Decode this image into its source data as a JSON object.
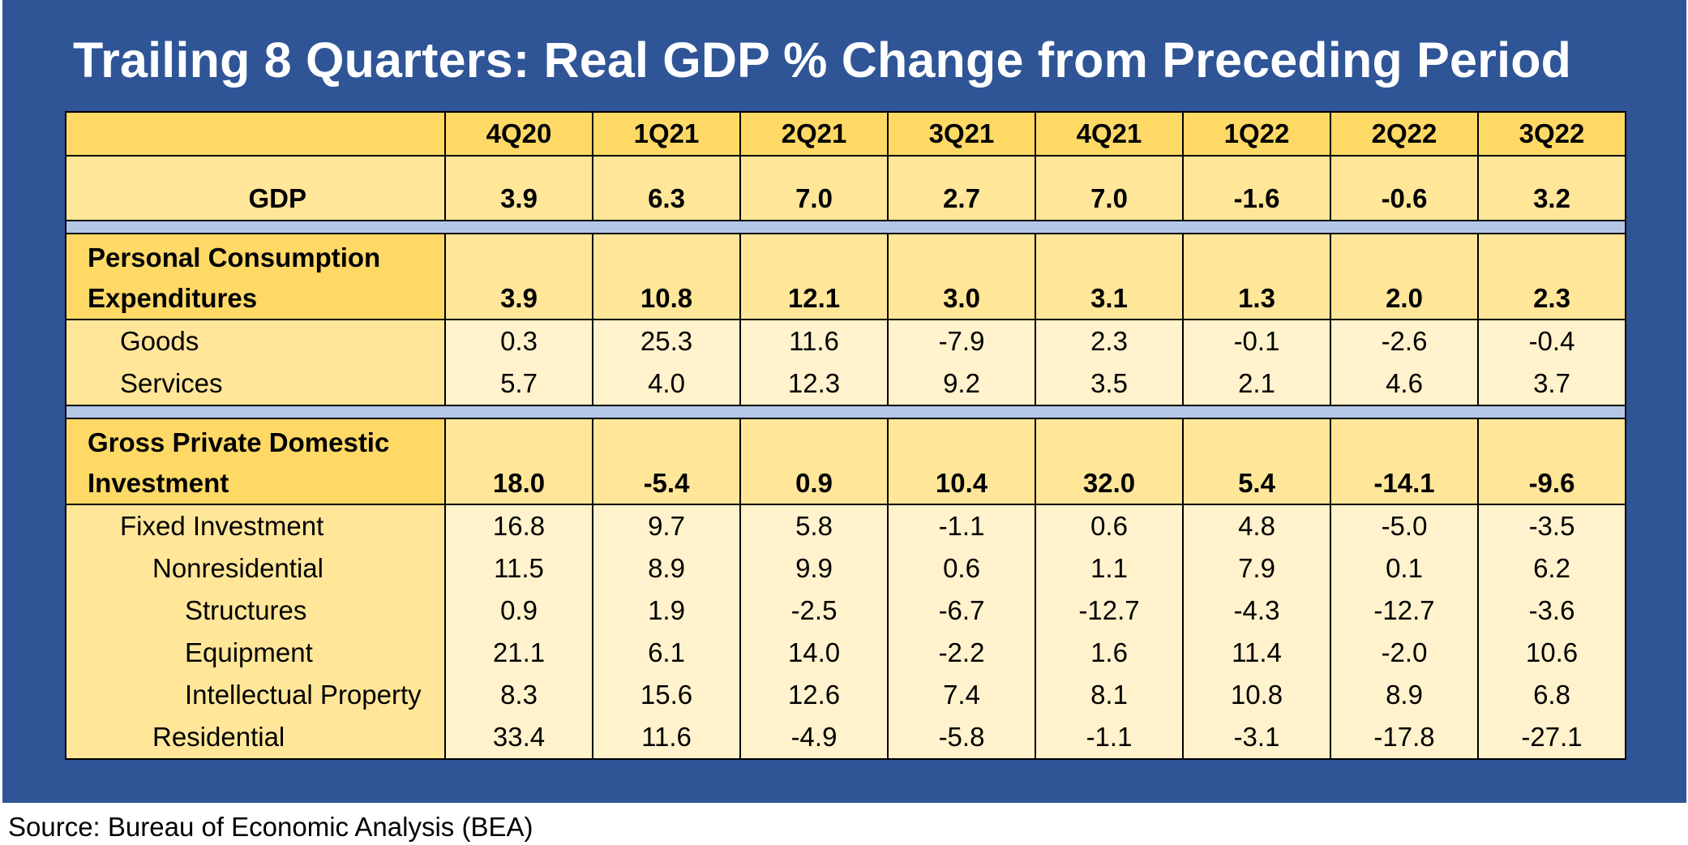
{
  "title": "Trailing 8 Quarters: Real GDP % Change from Preceding Period",
  "source": "Source: Bureau of Economic Analysis (BEA)",
  "chart_data": {
    "type": "table",
    "title": "Trailing 8 Quarters: Real GDP % Change from Preceding Period",
    "columns": [
      "4Q20",
      "1Q21",
      "2Q21",
      "3Q21",
      "4Q21",
      "1Q22",
      "2Q22",
      "3Q22"
    ],
    "rows": [
      {
        "label": "GDP",
        "values": [
          "3.9",
          "6.3",
          "7.0",
          "2.7",
          "7.0",
          "-1.6",
          "-0.6",
          "3.2"
        ]
      },
      {
        "label_lines": [
          "Personal Consumption",
          "Expenditures"
        ],
        "values": [
          "3.9",
          "10.8",
          "12.1",
          "3.0",
          "3.1",
          "1.3",
          "2.0",
          "2.3"
        ]
      },
      {
        "label": "Goods",
        "values": [
          "0.3",
          "25.3",
          "11.6",
          "-7.9",
          "2.3",
          "-0.1",
          "-2.6",
          "-0.4"
        ]
      },
      {
        "label": "Services",
        "values": [
          "5.7",
          "4.0",
          "12.3",
          "9.2",
          "3.5",
          "2.1",
          "4.6",
          "3.7"
        ]
      },
      {
        "label_lines": [
          "Gross Private Domestic",
          "Investment"
        ],
        "values": [
          "18.0",
          "-5.4",
          "0.9",
          "10.4",
          "32.0",
          "5.4",
          "-14.1",
          "-9.6"
        ]
      },
      {
        "label": "Fixed Investment",
        "values": [
          "16.8",
          "9.7",
          "5.8",
          "-1.1",
          "0.6",
          "4.8",
          "-5.0",
          "-3.5"
        ]
      },
      {
        "label": "Nonresidential",
        "values": [
          "11.5",
          "8.9",
          "9.9",
          "0.6",
          "1.1",
          "7.9",
          "0.1",
          "6.2"
        ]
      },
      {
        "label": "Structures",
        "values": [
          "0.9",
          "1.9",
          "-2.5",
          "-6.7",
          "-12.7",
          "-4.3",
          "-12.7",
          "-3.6"
        ]
      },
      {
        "label": "Equipment",
        "values": [
          "21.1",
          "6.1",
          "14.0",
          "-2.2",
          "1.6",
          "11.4",
          "-2.0",
          "10.6"
        ]
      },
      {
        "label": "Intellectual Property",
        "values": [
          "8.3",
          "15.6",
          "12.6",
          "7.4",
          "8.1",
          "10.8",
          "8.9",
          "6.8"
        ]
      },
      {
        "label": "Residential",
        "values": [
          "33.4",
          "11.6",
          "-4.9",
          "-5.8",
          "-1.1",
          "-3.1",
          "-17.8",
          "-27.1"
        ]
      }
    ]
  }
}
